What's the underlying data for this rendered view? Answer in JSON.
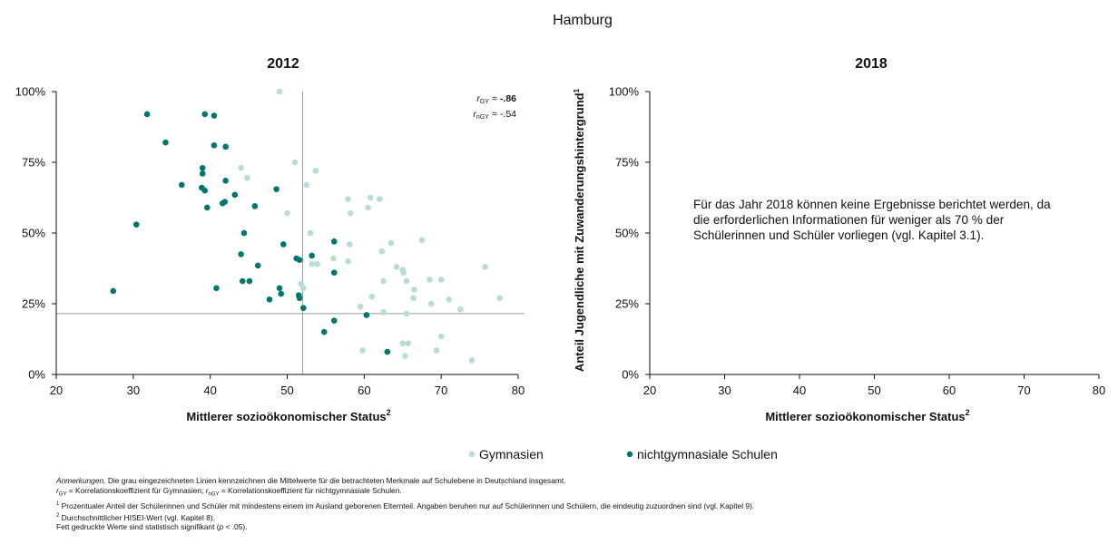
{
  "figure_title": "Hamburg",
  "colors": {
    "gymnasien": "#b7dcd9",
    "nicht": "#00766f",
    "reference_line": "#9a9a9a",
    "axis": "#111111"
  },
  "legend": {
    "gymnasien": "Gymnasien",
    "nicht": "nichtgymnasiale Schulen"
  },
  "panel_right_note": "Für das Jahr 2018 können keine Ergebnisse berichtet werden, da die erforderlichen Informationen für weniger als 70 % der Schülerinnen und Schüler vorliegen (vgl. Kapitel 3.1).",
  "notes": [
    "Die grau eingezeichneten Linien kennzeichnen die Mittelwerte für die betrachteten Merkmale auf Schulebene in Deutschland insgesamt.",
    "= Korrelationskoeffizient für Gymnasien;",
    "= Korrelationskoeffizient für nichtgymnasiale Schulen.",
    "Prozentualer Anteil der Schülerinnen und Schüler mit mindestens einem im Ausland geborenen Elternteil.  Angaben beruhen nur auf Schülerinnen und Schülern, die eindeutig zuzuordnen sind (vgl. Kapitel 9).",
    "Durchschnittlicher HISEI-Wert (vgl. Kapitel 8).",
    "Fett gedruckte Werte sind statistisch signifikant (",
    " < .05)."
  ],
  "notes_label": "Anmerkungen.",
  "chart_data": [
    {
      "type": "scatter",
      "title": "2012",
      "xlabel": "Mittlerer sozioökonomischer Status",
      "xlabel_sup": "2",
      "ylabel": "Anteil Jugendliche mit Zuwanderungshintergrund",
      "ylabel_sup": "1",
      "xlim": [
        20,
        80
      ],
      "ylim": [
        0,
        100
      ],
      "xticks": [
        "20",
        "30",
        "40",
        "50",
        "60",
        "70",
        "80"
      ],
      "yticks": [
        "0%",
        "25%",
        "50%",
        "75%",
        "100%"
      ],
      "reference_lines": {
        "x": 52,
        "y": 21.5
      },
      "correlations": {
        "r_gy_label": "r",
        "r_gy_sub": "GY",
        "r_gy_value": "-.86",
        "r_ngy_label": "r",
        "r_ngy_sub": "nGY",
        "r_ngy_value": "-.54",
        "r_gy_bold": true,
        "r_ngy_bold": false
      },
      "series": [
        {
          "name": "Gymnasien",
          "points": [
            [
              49,
              100
            ],
            [
              51,
              75
            ],
            [
              53.7,
              72
            ],
            [
              52.5,
              67
            ],
            [
              44,
              73
            ],
            [
              44.8,
              69.5
            ],
            [
              50,
              57
            ],
            [
              57.9,
              62
            ],
            [
              60.5,
              59
            ],
            [
              60.8,
              62.5
            ],
            [
              62,
              62
            ],
            [
              58.2,
              57
            ],
            [
              63.5,
              46.5
            ],
            [
              67.5,
              47.5
            ],
            [
              53,
              50
            ],
            [
              58.1,
              46
            ],
            [
              62.3,
              43.5
            ],
            [
              57.9,
              40
            ],
            [
              56,
              41
            ],
            [
              53.2,
              39
            ],
            [
              53.9,
              39
            ],
            [
              51.8,
              32
            ],
            [
              52.1,
              30.5
            ],
            [
              62.5,
              33
            ],
            [
              64.2,
              38
            ],
            [
              65,
              37
            ],
            [
              65.1,
              36
            ],
            [
              66.5,
              30
            ],
            [
              66.4,
              27
            ],
            [
              61,
              27.5
            ],
            [
              65.5,
              33
            ],
            [
              68.5,
              33.5
            ],
            [
              70,
              33.5
            ],
            [
              75.7,
              38
            ],
            [
              77.6,
              27
            ],
            [
              71,
              26.5
            ],
            [
              68.7,
              25
            ],
            [
              72.5,
              23
            ],
            [
              59.5,
              24
            ],
            [
              62.5,
              22
            ],
            [
              65.5,
              21.5
            ],
            [
              70,
              13.5
            ],
            [
              65,
              11
            ],
            [
              65.7,
              11
            ],
            [
              69.4,
              8.5
            ],
            [
              59.8,
              8.5
            ],
            [
              65.3,
              6.5
            ],
            [
              74,
              5
            ]
          ]
        },
        {
          "name": "nichtgymnasiale Schulen",
          "points": [
            [
              31.8,
              92
            ],
            [
              39.3,
              92
            ],
            [
              40.5,
              91.5
            ],
            [
              34.2,
              82
            ],
            [
              40.5,
              81
            ],
            [
              42,
              80.5
            ],
            [
              39,
              73
            ],
            [
              39,
              71
            ],
            [
              36.3,
              67
            ],
            [
              38.9,
              66
            ],
            [
              39.3,
              65
            ],
            [
              42,
              68.5
            ],
            [
              43.2,
              63.5
            ],
            [
              41.9,
              61
            ],
            [
              41.6,
              60.5
            ],
            [
              39.6,
              59
            ],
            [
              45.8,
              59.5
            ],
            [
              48.6,
              65.5
            ],
            [
              30.4,
              53
            ],
            [
              44.4,
              50
            ],
            [
              49.5,
              46
            ],
            [
              44,
              42.5
            ],
            [
              46.2,
              38.5
            ],
            [
              51.2,
              41
            ],
            [
              51.6,
              40.5
            ],
            [
              53.2,
              42
            ],
            [
              56.1,
              47
            ],
            [
              56.1,
              36
            ],
            [
              44.2,
              33
            ],
            [
              45.1,
              33
            ],
            [
              40.8,
              30.5
            ],
            [
              49,
              30.5
            ],
            [
              49.2,
              28.5
            ],
            [
              47.7,
              26.5
            ],
            [
              51.5,
              28
            ],
            [
              51.6,
              27
            ],
            [
              52.1,
              23.5
            ],
            [
              27.4,
              29.5
            ],
            [
              56.1,
              19
            ],
            [
              60.3,
              21
            ],
            [
              54.8,
              15
            ],
            [
              63,
              8
            ]
          ]
        }
      ]
    },
    {
      "type": "scatter",
      "title": "2018",
      "xlabel": "Mittlerer sozioökonomischer Status",
      "xlabel_sup": "2",
      "ylabel": "Anteil Jugendliche mit Zuwanderungshintergrund",
      "ylabel_sup": "1",
      "xlim": [
        20,
        80
      ],
      "ylim": [
        0,
        100
      ],
      "xticks": [
        "20",
        "30",
        "40",
        "50",
        "60",
        "70",
        "80"
      ],
      "yticks": [
        "0%",
        "25%",
        "50%",
        "75%",
        "100%"
      ],
      "series": []
    }
  ]
}
